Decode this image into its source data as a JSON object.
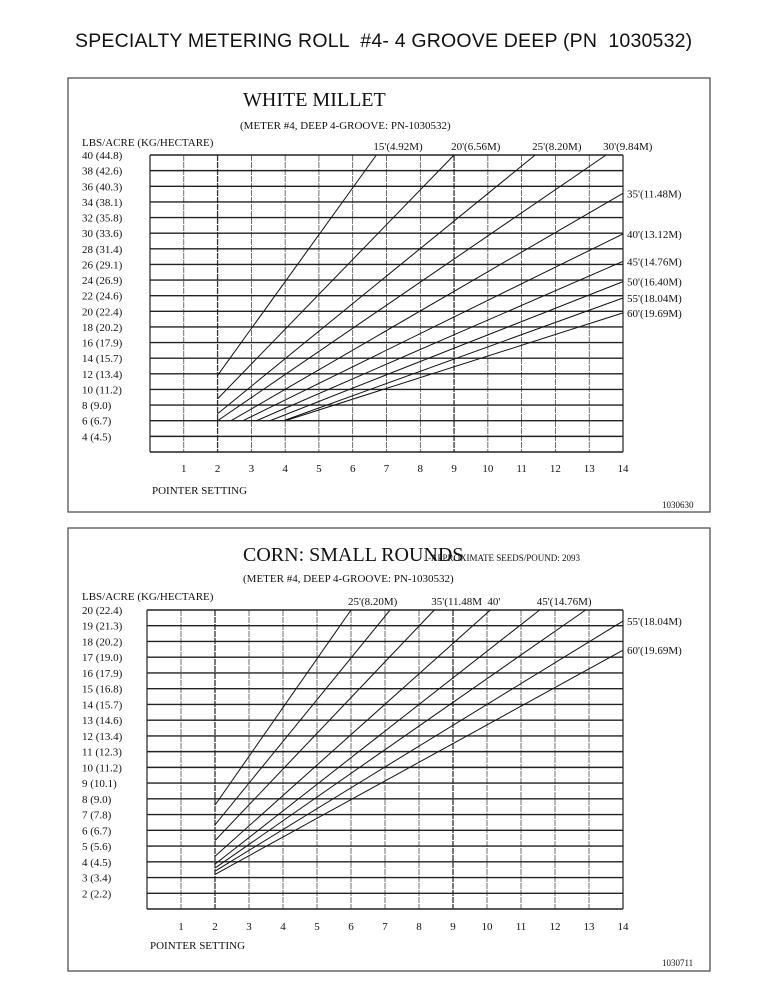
{
  "page_title": "SPECIALTY METERING ROLL  #4- 4 GROOVE DEEP (PN  1030532)",
  "chart_data": [
    {
      "type": "line",
      "title": "WHITE MILLET",
      "subtitle": "(METER #4, DEEP 4-GROOVE: PN-1030532)",
      "ylabel": "LBS/ACRE (KG/HECTARE)",
      "xlabel": "POINTER SETTING",
      "figure_code": "1030630",
      "xlim": [
        0,
        14
      ],
      "ylim": [
        2,
        40
      ],
      "grid": true,
      "grid_y_step": 2,
      "x_ticks": [
        "1",
        "2",
        "3",
        "4",
        "5",
        "6",
        "7",
        "8",
        "9",
        "10",
        "11",
        "12",
        "13",
        "14"
      ],
      "y_ticks": [
        {
          "value": 40,
          "label": "40 (44.8)"
        },
        {
          "value": 38,
          "label": "38 (42.6)"
        },
        {
          "value": 36,
          "label": "36 (40.3)"
        },
        {
          "value": 34,
          "label": "34 (38.1)"
        },
        {
          "value": 32,
          "label": "32 (35.8)"
        },
        {
          "value": 30,
          "label": "30 (33.6)"
        },
        {
          "value": 28,
          "label": "28 (31.4)"
        },
        {
          "value": 26,
          "label": "26 (29.1)"
        },
        {
          "value": 24,
          "label": "24 (26.9)"
        },
        {
          "value": 22,
          "label": "22 (24.6)"
        },
        {
          "value": 20,
          "label": "20 (22.4)"
        },
        {
          "value": 18,
          "label": "18 (20.2)"
        },
        {
          "value": 16,
          "label": "16 (17.9)"
        },
        {
          "value": 14,
          "label": "14 (15.7)"
        },
        {
          "value": 12,
          "label": "12 (13.4)"
        },
        {
          "value": 10,
          "label": "10 (11.2)"
        },
        {
          "value": 8,
          "label": "8 (9.0)"
        },
        {
          "value": 6,
          "label": "6 (6.7)"
        },
        {
          "value": 4,
          "label": "4 (4.5)"
        }
      ],
      "series": [
        {
          "name": "15'(4.92M)",
          "points": [
            [
              2,
              11.8
            ],
            [
              6.7,
              40
            ]
          ]
        },
        {
          "name": "20'(6.56M)",
          "points": [
            [
              2,
              8.8
            ],
            [
              9.0,
              40
            ]
          ]
        },
        {
          "name": "25'(8.20M)",
          "points": [
            [
              2,
              6.9
            ],
            [
              11.4,
              40
            ]
          ]
        },
        {
          "name": "30'(9.84M)",
          "points": [
            [
              2,
              6.0
            ],
            [
              13.5,
              40
            ]
          ]
        },
        {
          "name": "35'(11.48M)",
          "points": [
            [
              2.4,
              6.0
            ],
            [
              14,
              35.1
            ]
          ]
        },
        {
          "name": "40'(13.12M)",
          "points": [
            [
              2.75,
              6.0
            ],
            [
              14,
              29.9
            ]
          ]
        },
        {
          "name": "45'(14.76M)",
          "points": [
            [
              3.15,
              6.0
            ],
            [
              14,
              26.4
            ]
          ]
        },
        {
          "name": "50'(16.40M)",
          "points": [
            [
              3.55,
              6.0
            ],
            [
              14,
              23.8
            ]
          ]
        },
        {
          "name": "55'(18.04M)",
          "points": [
            [
              3.95,
              6.0
            ],
            [
              14,
              21.7
            ]
          ]
        },
        {
          "name": "60'(19.69M)",
          "points": [
            [
              4.0,
              6.0
            ],
            [
              14,
              19.8
            ]
          ]
        }
      ]
    },
    {
      "type": "line",
      "title": "CORN:  SMALL ROUNDS",
      "note": "-APPROXIMATE SEEDS/POUND: 2093",
      "subtitle": "(METER #4, DEEP 4-GROOVE: PN-1030532)",
      "ylabel": "LBS/ACRE (KG/HECTARE)",
      "xlabel": "POINTER SETTING",
      "figure_code": "1030711",
      "xlim": [
        0,
        14
      ],
      "ylim": [
        1,
        20
      ],
      "grid": true,
      "grid_y_step": 1,
      "x_ticks": [
        "1",
        "2",
        "3",
        "4",
        "5",
        "6",
        "7",
        "8",
        "9",
        "10",
        "11",
        "12",
        "13",
        "14"
      ],
      "y_ticks": [
        {
          "value": 20,
          "label": "20 (22.4)"
        },
        {
          "value": 19,
          "label": "19 (21.3)"
        },
        {
          "value": 18,
          "label": "18 (20.2)"
        },
        {
          "value": 17,
          "label": "17 (19.0)"
        },
        {
          "value": 16,
          "label": "16 (17.9)"
        },
        {
          "value": 15,
          "label": "15 (16.8)"
        },
        {
          "value": 14,
          "label": "14 (15.7)"
        },
        {
          "value": 13,
          "label": "13 (14.6)"
        },
        {
          "value": 12,
          "label": "12 (13.4)"
        },
        {
          "value": 11,
          "label": "11 (12.3)"
        },
        {
          "value": 10,
          "label": "10 (11.2)"
        },
        {
          "value": 9,
          "label": "9 (10.1)"
        },
        {
          "value": 8,
          "label": "8 (9.0)"
        },
        {
          "value": 7,
          "label": "7 (7.8)"
        },
        {
          "value": 6,
          "label": "6 (6.7)"
        },
        {
          "value": 5,
          "label": "5 (5.6)"
        },
        {
          "value": 4,
          "label": "4 (4.5)"
        },
        {
          "value": 3,
          "label": "3 (3.4)"
        },
        {
          "value": 2,
          "label": "2 (2.2)"
        }
      ],
      "series": [
        {
          "name": "25'(8.20M)",
          "points": [
            [
              2,
              7.6
            ],
            [
              6.0,
              20
            ]
          ]
        },
        {
          "points": [
            [
              2,
              6.35
            ],
            [
              7.15,
              20
            ]
          ]
        },
        {
          "name": "35'(11.48M",
          "points": [
            [
              2,
              5.35
            ],
            [
              8.45,
              20
            ]
          ]
        },
        {
          "name": "40'",
          "points": [
            [
              2,
              4.35
            ],
            [
              10.1,
              20
            ]
          ]
        },
        {
          "name": "45'(14.76M)",
          "points": [
            [
              2,
              3.85
            ],
            [
              11.55,
              20
            ]
          ]
        },
        {
          "points": [
            [
              2,
              3.6
            ],
            [
              12.9,
              20
            ]
          ]
        },
        {
          "name": "55'(18.04M)",
          "points": [
            [
              2,
              3.4
            ],
            [
              14,
              19.3
            ]
          ]
        },
        {
          "name": "60'(19.69M)",
          "points": [
            [
              2,
              3.2
            ],
            [
              14,
              17.45
            ]
          ]
        }
      ]
    }
  ]
}
